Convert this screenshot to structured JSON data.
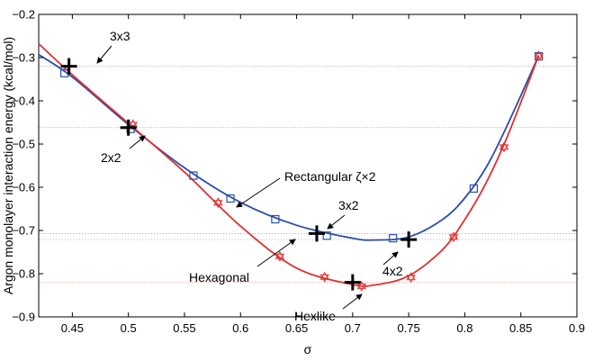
{
  "chart_data": {
    "type": "line",
    "title": "",
    "xlabel": "σ",
    "ylabel": "Argon monolayer interaction energy (kcal/mol)",
    "xlim": [
      0.42,
      0.9
    ],
    "ylim": [
      -0.9,
      -0.2
    ],
    "xticks": [
      "0.45",
      "0.5",
      "0.55",
      "0.6",
      "0.65",
      "0.7",
      "0.75",
      "0.8",
      "0.85",
      "0.9"
    ],
    "yticks": [
      "-0.2",
      "-0.3",
      "-0.4",
      "-0.5",
      "-0.6",
      "-0.7",
      "-0.8",
      "-0.9"
    ],
    "grid": false,
    "series": [
      {
        "name": "Rectangular ζ×2",
        "color": "#2a4fa8",
        "marker": "square",
        "curve": [
          [
            0.42,
            -0.293
          ],
          [
            0.45,
            -0.345
          ],
          [
            0.5,
            -0.455
          ],
          [
            0.55,
            -0.555
          ],
          [
            0.6,
            -0.635
          ],
          [
            0.65,
            -0.688
          ],
          [
            0.7,
            -0.718
          ],
          [
            0.72,
            -0.722
          ],
          [
            0.75,
            -0.715
          ],
          [
            0.78,
            -0.675
          ],
          [
            0.8,
            -0.625
          ],
          [
            0.82,
            -0.55
          ],
          [
            0.84,
            -0.445
          ],
          [
            0.866,
            -0.295
          ]
        ],
        "points": [
          [
            0.443,
            -0.336
          ],
          [
            0.502,
            -0.465
          ],
          [
            0.558,
            -0.573
          ],
          [
            0.591,
            -0.626
          ],
          [
            0.631,
            -0.674
          ],
          [
            0.677,
            -0.712
          ],
          [
            0.736,
            -0.718
          ],
          [
            0.808,
            -0.603
          ],
          [
            0.866,
            -0.297
          ]
        ]
      },
      {
        "name": "Hexagonal",
        "color": "#e03030",
        "marker": "star",
        "curve": [
          [
            0.42,
            -0.268
          ],
          [
            0.45,
            -0.34
          ],
          [
            0.5,
            -0.452
          ],
          [
            0.55,
            -0.565
          ],
          [
            0.6,
            -0.69
          ],
          [
            0.65,
            -0.787
          ],
          [
            0.7,
            -0.825
          ],
          [
            0.72,
            -0.826
          ],
          [
            0.75,
            -0.805
          ],
          [
            0.78,
            -0.745
          ],
          [
            0.8,
            -0.675
          ],
          [
            0.82,
            -0.585
          ],
          [
            0.84,
            -0.47
          ],
          [
            0.866,
            -0.295
          ]
        ],
        "points": [
          [
            0.504,
            -0.455
          ],
          [
            0.58,
            -0.636
          ],
          [
            0.635,
            -0.76
          ],
          [
            0.675,
            -0.808
          ],
          [
            0.708,
            -0.829
          ],
          [
            0.752,
            -0.809
          ],
          [
            0.79,
            -0.715
          ],
          [
            0.835,
            -0.507
          ],
          [
            0.866,
            -0.296
          ]
        ]
      }
    ],
    "reference_lines": [
      -0.32,
      -0.462,
      -0.707,
      -0.721,
      -0.82
    ],
    "special_points": [
      {
        "label": "3x3",
        "x": 0.447,
        "y": -0.32
      },
      {
        "label": "2x2",
        "x": 0.5,
        "y": -0.462
      },
      {
        "label": "3x2",
        "x": 0.668,
        "y": -0.707
      },
      {
        "label": "4x2",
        "x": 0.75,
        "y": -0.721
      },
      {
        "label": "Hexlike",
        "x": 0.7,
        "y": -0.82
      }
    ],
    "series_labels": [
      "Rectangular ζ×2",
      "Hexagonal"
    ]
  }
}
